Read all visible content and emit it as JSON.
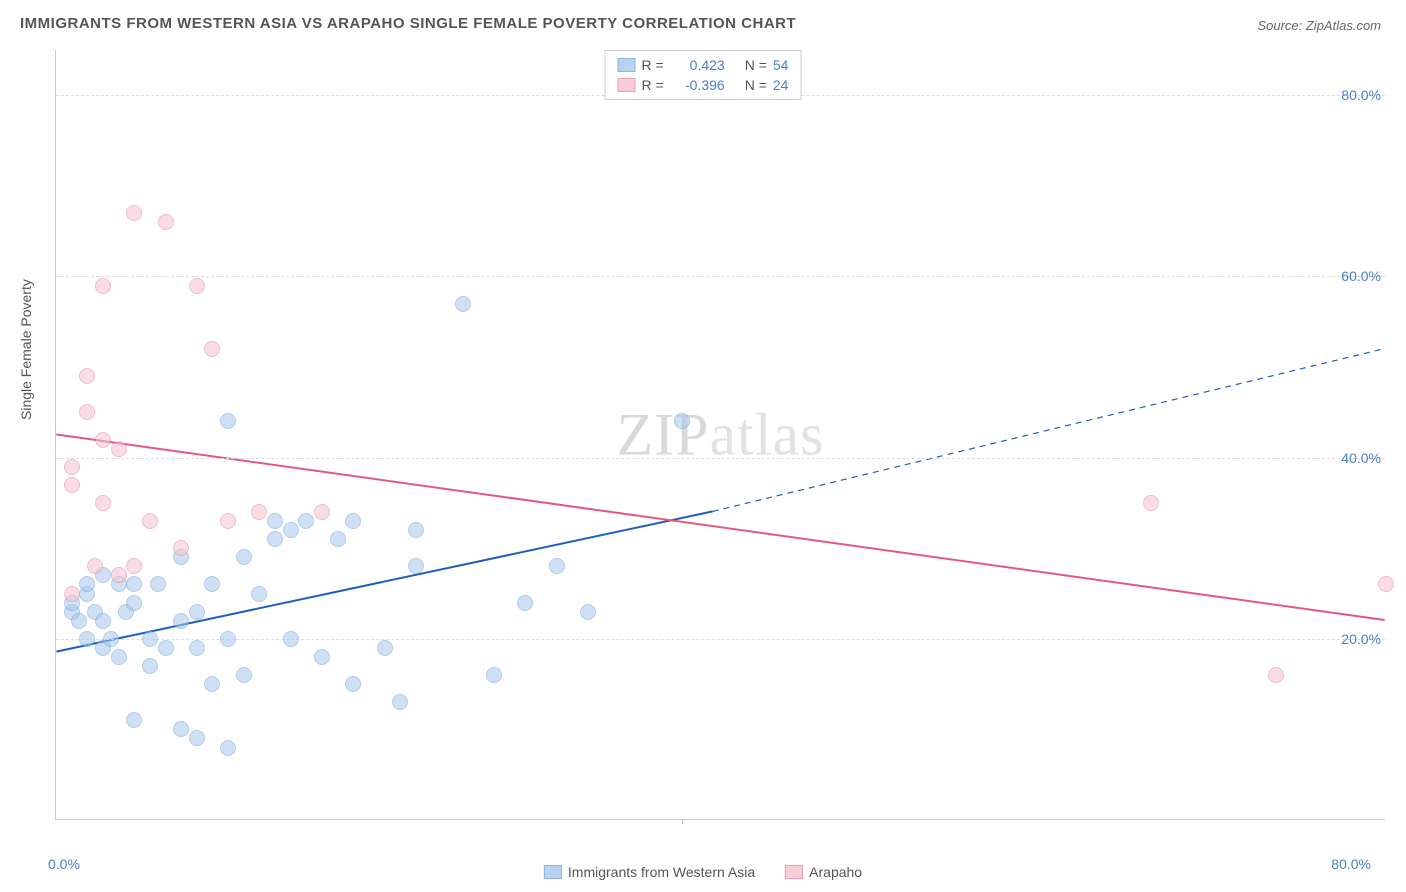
{
  "title": "IMMIGRANTS FROM WESTERN ASIA VS ARAPAHO SINGLE FEMALE POVERTY CORRELATION CHART",
  "source": "Source: ZipAtlas.com",
  "y_axis_label": "Single Female Poverty",
  "watermark_a": "ZIP",
  "watermark_b": "atlas",
  "chart": {
    "type": "scatter",
    "xlim": [
      0,
      85
    ],
    "ylim": [
      0,
      85
    ],
    "y_ticks": [
      20,
      40,
      60,
      80
    ],
    "y_tick_labels": [
      "20.0%",
      "40.0%",
      "60.0%",
      "80.0%"
    ],
    "x_ticks": [
      0,
      40,
      80
    ],
    "x_tick_labels": [
      "0.0%",
      "",
      "80.0%"
    ],
    "x_minor_tick": 40,
    "grid_color": "#dddddd",
    "background_color": "#ffffff",
    "point_radius": 8,
    "point_stroke_width": 1
  },
  "series": [
    {
      "name": "Immigrants from Western Asia",
      "label": "Immigrants from Western Asia",
      "fill_color": "#a8c8ec",
      "stroke_color": "#6fa3df",
      "fill_opacity": 0.55,
      "R_label": "R =",
      "R_value": "0.423",
      "N_label": "N =",
      "N_value": "54",
      "trend": {
        "x1": 0,
        "y1": 18.5,
        "x2_solid": 42,
        "y2_solid": 34,
        "x2": 85,
        "y2": 52,
        "color": "#1f5fbf",
        "width": 2
      },
      "points": [
        [
          1,
          23
        ],
        [
          1,
          24
        ],
        [
          1.5,
          22
        ],
        [
          2,
          20
        ],
        [
          2,
          25
        ],
        [
          2,
          26
        ],
        [
          2.5,
          23
        ],
        [
          3,
          19
        ],
        [
          3,
          22
        ],
        [
          3,
          27
        ],
        [
          3.5,
          20
        ],
        [
          4,
          18
        ],
        [
          4,
          26
        ],
        [
          4.5,
          23
        ],
        [
          5,
          11
        ],
        [
          5,
          24
        ],
        [
          5,
          26
        ],
        [
          6,
          20
        ],
        [
          6,
          17
        ],
        [
          6.5,
          26
        ],
        [
          7,
          19
        ],
        [
          8,
          10
        ],
        [
          8,
          22
        ],
        [
          8,
          29
        ],
        [
          9,
          9
        ],
        [
          9,
          19
        ],
        [
          9,
          23
        ],
        [
          10,
          15
        ],
        [
          10,
          26
        ],
        [
          11,
          8
        ],
        [
          11,
          20
        ],
        [
          11,
          44
        ],
        [
          12,
          16
        ],
        [
          12,
          29
        ],
        [
          13,
          25
        ],
        [
          14,
          31
        ],
        [
          14,
          33
        ],
        [
          15,
          20
        ],
        [
          15,
          32
        ],
        [
          16,
          33
        ],
        [
          17,
          18
        ],
        [
          18,
          31
        ],
        [
          19,
          15
        ],
        [
          19,
          33
        ],
        [
          21,
          19
        ],
        [
          22,
          13
        ],
        [
          23,
          28
        ],
        [
          23,
          32
        ],
        [
          26,
          57
        ],
        [
          28,
          16
        ],
        [
          30,
          24
        ],
        [
          32,
          28
        ],
        [
          34,
          23
        ],
        [
          40,
          44
        ]
      ]
    },
    {
      "name": "Arapaho",
      "label": "Arapaho",
      "fill_color": "#f6c3cf",
      "stroke_color": "#e68aa0",
      "fill_opacity": 0.55,
      "R_label": "R =",
      "R_value": "-0.396",
      "N_label": "N =",
      "N_value": "24",
      "trend": {
        "x1": 0,
        "y1": 42.5,
        "x2_solid": 85,
        "y2_solid": 22,
        "x2": 85,
        "y2": 22,
        "color": "#e05a7d",
        "width": 2
      },
      "points": [
        [
          1,
          25
        ],
        [
          1,
          37
        ],
        [
          1,
          39
        ],
        [
          2,
          45
        ],
        [
          2,
          49
        ],
        [
          2.5,
          28
        ],
        [
          3,
          35
        ],
        [
          3,
          42
        ],
        [
          3,
          59
        ],
        [
          4,
          27
        ],
        [
          4,
          41
        ],
        [
          5,
          28
        ],
        [
          5,
          67
        ],
        [
          6,
          33
        ],
        [
          7,
          66
        ],
        [
          8,
          30
        ],
        [
          9,
          59
        ],
        [
          10,
          52
        ],
        [
          11,
          33
        ],
        [
          13,
          34
        ],
        [
          17,
          34
        ],
        [
          70,
          35
        ],
        [
          78,
          16
        ],
        [
          85,
          26
        ]
      ]
    }
  ],
  "legend_top": {
    "border_color": "#cccccc",
    "R_color": "#4a7ec7",
    "N_color": "#4a7ec7",
    "text_color": "#555555"
  },
  "legend_bottom": {
    "text_color": "#555555"
  }
}
